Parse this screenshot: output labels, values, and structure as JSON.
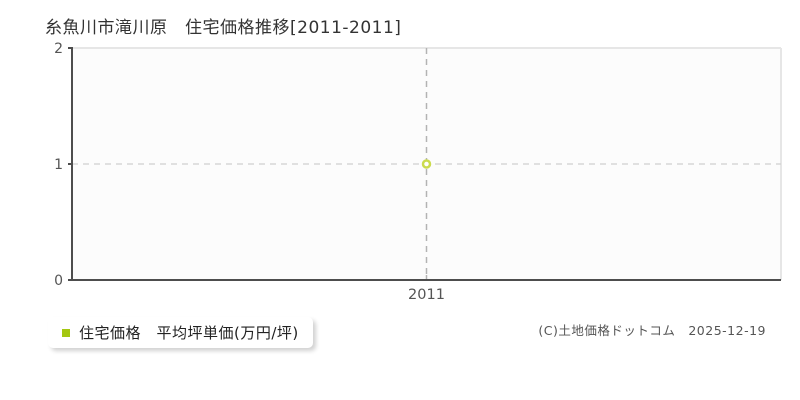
{
  "title": "糸魚川市滝川原　住宅価格推移[2011-2011]",
  "legend": {
    "label": "住宅価格　平均坪単価(万円/坪)"
  },
  "copyright": "(C)土地価格ドットコム　2025-12-19",
  "colors": {
    "accent_green": "#a4c711",
    "point_stroke": "#cbdb4d",
    "point_fill": "#ffffff",
    "axis": "#4d4d4d",
    "border_light": "#e6e6e6",
    "gridline": "#cfcfcf",
    "vline": "#b3b3b3",
    "tick_label": "#555555",
    "plot_bg": "#fcfcfc"
  },
  "chart_data": {
    "type": "scatter",
    "title": "糸魚川市滝川原　住宅価格推移[2011-2011]",
    "categories": [
      "2011"
    ],
    "series": [
      {
        "name": "住宅価格 平均坪単価(万円/坪)",
        "values": [
          1
        ]
      }
    ],
    "xlabel": "",
    "ylabel": "",
    "ylim": [
      0,
      2
    ],
    "yticks": [
      0,
      1,
      2
    ],
    "grid": "horizontal-dashed-at-1, vertical-dashed-at-each-x",
    "legend_position": "bottom-left-outside"
  }
}
